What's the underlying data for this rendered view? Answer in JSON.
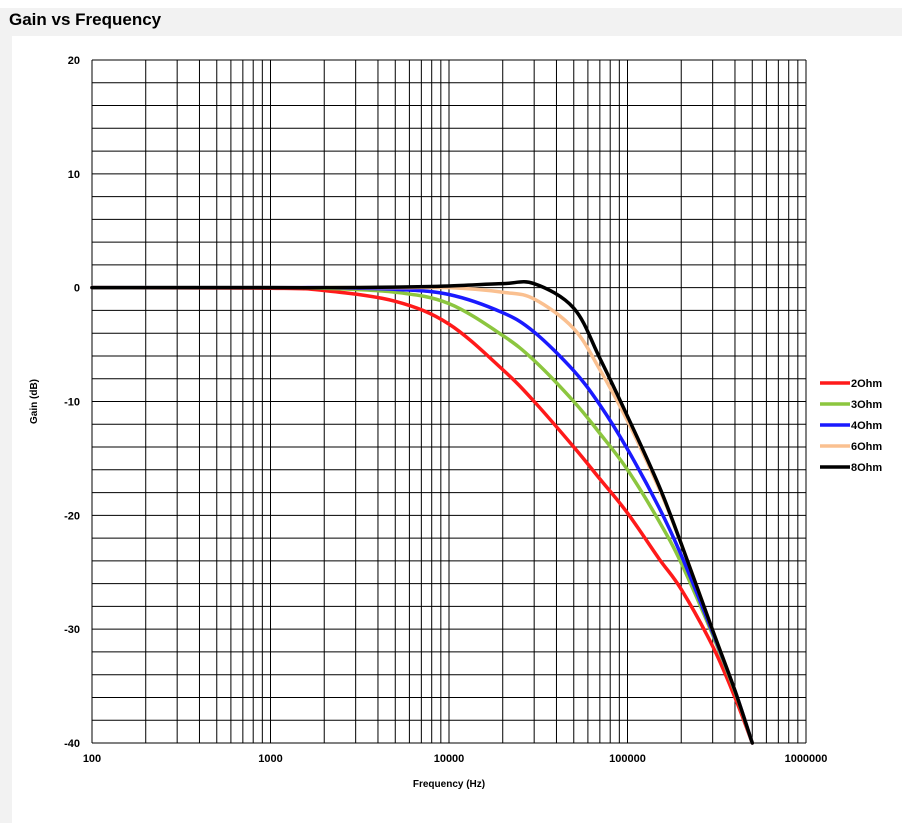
{
  "chart_data": {
    "type": "line",
    "title": "Gain vs Frequency",
    "xlabel": "Frequency (Hz)",
    "ylabel": "Gain (dB)",
    "xscale": "log",
    "xlim": [
      100,
      1000000
    ],
    "ylim": [
      -40,
      20
    ],
    "grid": true,
    "legend_position": "right",
    "x_ticks": [
      "100",
      "1000",
      "10000",
      "100000",
      "1000000"
    ],
    "y_ticks": [
      "20",
      "10",
      "0",
      "-10",
      "-20",
      "-30",
      "-40"
    ],
    "x": [
      100,
      1000,
      2000,
      5000,
      10000,
      20000,
      30000,
      50000,
      70000,
      100000,
      150000,
      200000,
      300000,
      400000,
      500000
    ],
    "series": [
      {
        "name": "2Ohm",
        "color": "#ff1a1a",
        "values": [
          0,
          -0.05,
          -0.25,
          -1.2,
          -3.2,
          -7.2,
          -10.0,
          -14.0,
          -16.8,
          -19.8,
          -23.8,
          -26.5,
          -31.5,
          -36.0,
          -40.0
        ]
      },
      {
        "name": "3Ohm",
        "color": "#8cc63f",
        "values": [
          0,
          0,
          -0.05,
          -0.4,
          -1.4,
          -4.2,
          -6.4,
          -10.0,
          -12.8,
          -16.0,
          -20.5,
          -24.2,
          -30.5,
          -35.5,
          -40.0
        ]
      },
      {
        "name": "4Ohm",
        "color": "#1a1aff",
        "values": [
          0,
          0,
          0,
          -0.15,
          -0.6,
          -2.2,
          -3.9,
          -7.3,
          -10.3,
          -14.2,
          -19.3,
          -23.5,
          -30.3,
          -35.4,
          -40.0
        ]
      },
      {
        "name": "6Ohm",
        "color": "#fac090",
        "values": [
          0,
          0,
          0,
          0,
          0,
          -0.4,
          -1.0,
          -3.6,
          -7.2,
          -11.7,
          -17.6,
          -22.5,
          -30.1,
          -35.4,
          -40.0
        ]
      },
      {
        "name": "8Ohm",
        "color": "#000000",
        "values": [
          0,
          0,
          0,
          0.05,
          0.15,
          0.35,
          0.35,
          -1.8,
          -6.2,
          -11.3,
          -17.4,
          -22.5,
          -30.1,
          -35.4,
          -40.0
        ]
      }
    ]
  }
}
